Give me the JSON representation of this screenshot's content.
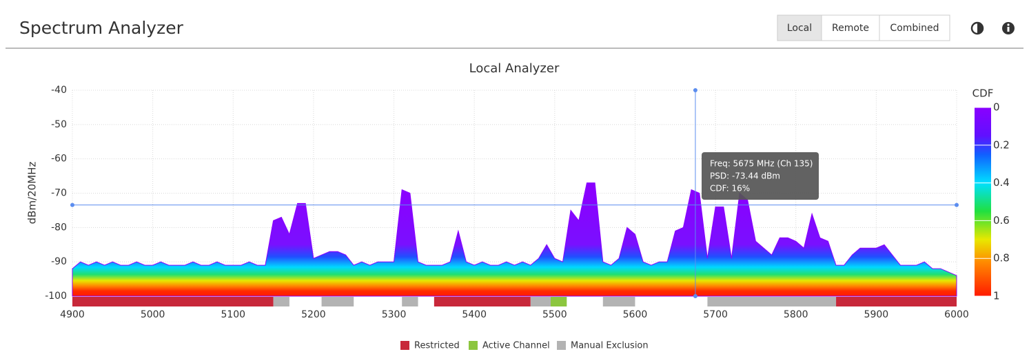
{
  "header": {
    "title": "Spectrum Analyzer",
    "buttons": [
      "Local",
      "Remote",
      "Combined"
    ],
    "selected": 0
  },
  "chart_data": {
    "type": "area",
    "title": "Local  Analyzer",
    "y_label": "dBm/20MHz",
    "x": [
      4900,
      4910,
      4920,
      4930,
      4940,
      4950,
      4960,
      4970,
      4980,
      4990,
      5000,
      5010,
      5020,
      5030,
      5040,
      5050,
      5060,
      5070,
      5080,
      5090,
      5100,
      5110,
      5120,
      5130,
      5140,
      5150,
      5160,
      5170,
      5180,
      5190,
      5200,
      5210,
      5220,
      5230,
      5240,
      5250,
      5260,
      5270,
      5280,
      5290,
      5300,
      5310,
      5320,
      5330,
      5340,
      5350,
      5360,
      5370,
      5380,
      5390,
      5400,
      5410,
      5420,
      5430,
      5440,
      5450,
      5460,
      5470,
      5480,
      5490,
      5500,
      5510,
      5520,
      5530,
      5540,
      5550,
      5560,
      5570,
      5580,
      5590,
      5600,
      5610,
      5620,
      5630,
      5640,
      5650,
      5660,
      5670,
      5680,
      5690,
      5700,
      5710,
      5720,
      5730,
      5740,
      5750,
      5760,
      5770,
      5780,
      5790,
      5800,
      5810,
      5820,
      5830,
      5840,
      5850,
      5860,
      5870,
      5880,
      5890,
      5900,
      5910,
      5920,
      5930,
      5940,
      5950,
      5960,
      5970,
      5980,
      5990,
      6000
    ],
    "values": [
      -92,
      -90,
      -91,
      -90,
      -91,
      -90,
      -91,
      -91,
      -90,
      -91,
      -91,
      -90,
      -91,
      -91,
      -91,
      -90,
      -91,
      -91,
      -90,
      -91,
      -91,
      -91,
      -90,
      -91,
      -91,
      -78,
      -77,
      -82,
      -73,
      -73,
      -89,
      -88,
      -87,
      -87,
      -88,
      -91,
      -90,
      -91,
      -90,
      -90,
      -90,
      -69,
      -70,
      -90,
      -91,
      -91,
      -91,
      -90,
      -81,
      -90,
      -91,
      -90,
      -91,
      -91,
      -90,
      -91,
      -90,
      -91,
      -89,
      -85,
      -89,
      -90,
      -75,
      -78,
      -67,
      -67,
      -90,
      -91,
      -89,
      -80,
      -82,
      -90,
      -91,
      -90,
      -90,
      -81,
      -80,
      -69,
      -70,
      -89,
      -74,
      -74,
      -89,
      -70,
      -72,
      -84,
      -86,
      -88,
      -83,
      -83,
      -84,
      -86,
      -76,
      -83,
      -84,
      -91,
      -91,
      -88,
      -86,
      -86,
      -86,
      -85,
      -88,
      -91,
      -91,
      -91,
      -90,
      -92,
      -92,
      -93,
      -94
    ],
    "xlim": [
      4900,
      6000
    ],
    "xticks": [
      4900,
      5000,
      5100,
      5200,
      5300,
      5400,
      5500,
      5600,
      5700,
      5800,
      5900,
      6000
    ],
    "ylim": [
      -100,
      -40
    ],
    "yticks": [
      -40,
      -50,
      -60,
      -70,
      -80,
      -90,
      -100
    ],
    "grid": true,
    "bands": [
      {
        "name": "Restricted",
        "color": "#c8283a",
        "ranges": [
          [
            4900,
            5150
          ],
          [
            5350,
            5470
          ],
          [
            5850,
            6000
          ]
        ]
      },
      {
        "name": "Active Channel",
        "color": "#8cc63f",
        "ranges": [
          [
            5495,
            5515
          ]
        ]
      },
      {
        "name": "Manual Exclusion",
        "color": "#b3b3b3",
        "ranges": [
          [
            5150,
            5170
          ],
          [
            5210,
            5250
          ],
          [
            5310,
            5330
          ],
          [
            5470,
            5495
          ],
          [
            5560,
            5600
          ],
          [
            5690,
            5850
          ]
        ]
      }
    ],
    "colorbar": {
      "title": "CDF",
      "lim": [
        0,
        1
      ],
      "ticks": [
        0,
        0.2,
        0.4,
        0.6,
        0.8,
        1
      ]
    },
    "cursor": {
      "x": 5675,
      "y": -73.44
    },
    "tooltip": [
      "Freq: 5675 MHz (Ch 135)",
      "PSD: -73.44 dBm",
      "CDF: 16%"
    ]
  }
}
